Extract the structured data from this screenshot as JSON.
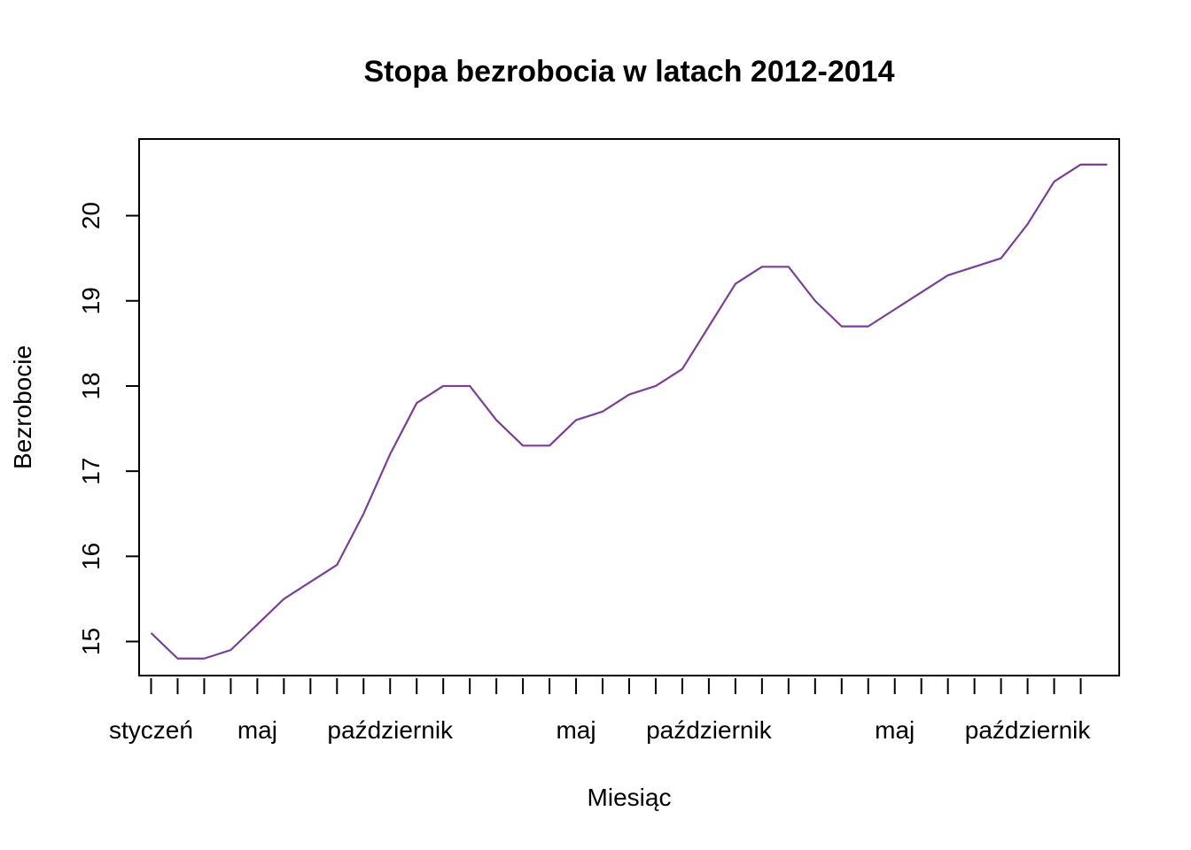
{
  "chart_data": {
    "type": "line",
    "title": "Stopa bezrobocia w latach 2012-2014",
    "xlabel": "Miesiąc",
    "ylabel": "Bezrobocie",
    "line_color": "#7b3f98",
    "grid": false,
    "legend": "none",
    "xlim": [
      0.55,
      37.45
    ],
    "ylim": [
      14.6,
      20.9
    ],
    "y_ticks": [
      15,
      16,
      17,
      18,
      19,
      20
    ],
    "x_tick_count": 36,
    "x_tick_labels": [
      {
        "x": 1,
        "label": "styczeń"
      },
      {
        "x": 5,
        "label": "maj"
      },
      {
        "x": 10,
        "label": "październik"
      },
      {
        "x": 17,
        "label": "maj"
      },
      {
        "x": 22,
        "label": "październik"
      },
      {
        "x": 29,
        "label": "maj"
      },
      {
        "x": 34,
        "label": "październik"
      }
    ],
    "series": [
      {
        "x": [
          1,
          2,
          3,
          4,
          5,
          6,
          7,
          8,
          9,
          10,
          11,
          12,
          13,
          14,
          15,
          16,
          17,
          18,
          19,
          20,
          21,
          22,
          23,
          24,
          25,
          26,
          27,
          28,
          29,
          30,
          31,
          32,
          33,
          34,
          35,
          36,
          37
        ],
        "values": [
          15.1,
          14.8,
          14.8,
          14.9,
          15.2,
          15.5,
          15.7,
          15.9,
          16.5,
          17.2,
          17.8,
          18.0,
          18.0,
          17.6,
          17.3,
          17.3,
          17.6,
          17.7,
          17.9,
          18.0,
          18.2,
          18.7,
          19.2,
          19.4,
          19.4,
          19.0,
          18.7,
          18.7,
          18.9,
          19.1,
          19.3,
          19.4,
          19.5,
          19.9,
          20.4,
          20.6,
          20.6
        ]
      }
    ]
  }
}
